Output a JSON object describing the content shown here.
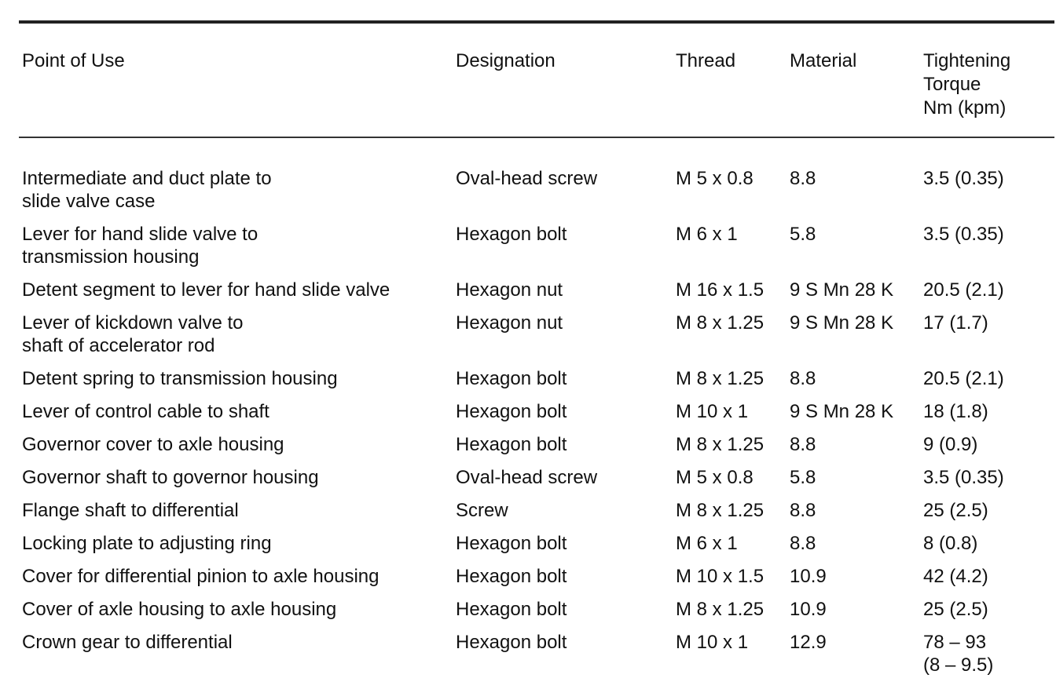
{
  "header": {
    "point_of_use": "Point of Use",
    "designation": "Designation",
    "thread": "Thread",
    "material": "Material",
    "torque": "Tightening\nTorque\nNm (kpm)"
  },
  "rows": [
    [
      "Intermediate and duct plate to\nslide valve case",
      "Oval-head screw",
      "M 5 x 0.8",
      "8.8",
      "3.5 (0.35)"
    ],
    [
      "Lever for hand slide valve to\ntransmission housing",
      "Hexagon bolt",
      "M 6 x 1",
      "5.8",
      "3.5 (0.35)"
    ],
    [
      "Detent segment to lever for hand slide valve",
      "Hexagon nut",
      "M 16 x 1.5",
      "9 S Mn 28 K",
      "20.5 (2.1)"
    ],
    [
      "Lever of kickdown valve to\nshaft of accelerator rod",
      "Hexagon nut",
      "M 8 x 1.25",
      "9 S Mn 28 K",
      "17 (1.7)"
    ],
    [
      "Detent spring to transmission housing",
      "Hexagon bolt",
      "M 8 x 1.25",
      "8.8",
      "20.5 (2.1)"
    ],
    [
      "Lever of control cable to shaft",
      "Hexagon bolt",
      "M 10 x 1",
      "9 S Mn 28 K",
      "18 (1.8)"
    ],
    [
      "Governor cover to axle housing",
      "Hexagon bolt",
      "M 8 x 1.25",
      "8.8",
      "9 (0.9)"
    ],
    [
      "Governor shaft to governor housing",
      "Oval-head screw",
      "M 5 x 0.8",
      "5.8",
      "3.5 (0.35)"
    ],
    [
      "Flange shaft to differential",
      "Screw",
      "M 8 x 1.25",
      "8.8",
      "25 (2.5)"
    ],
    [
      "Locking plate to adjusting ring",
      "Hexagon bolt",
      "M 6 x 1",
      "8.8",
      "8 (0.8)"
    ],
    [
      "Cover for differential pinion to axle housing",
      "Hexagon bolt",
      "M 10 x 1.5",
      "10.9",
      "42 (4.2)"
    ],
    [
      "Cover of axle housing to axle housing",
      "Hexagon bolt",
      "M 8 x 1.25",
      "10.9",
      "25 (2.5)"
    ],
    [
      "Crown gear to differential",
      "Hexagon bolt",
      "M 10 x 1",
      "12.9",
      "78 – 93\n(8 – 9.5)"
    ]
  ]
}
